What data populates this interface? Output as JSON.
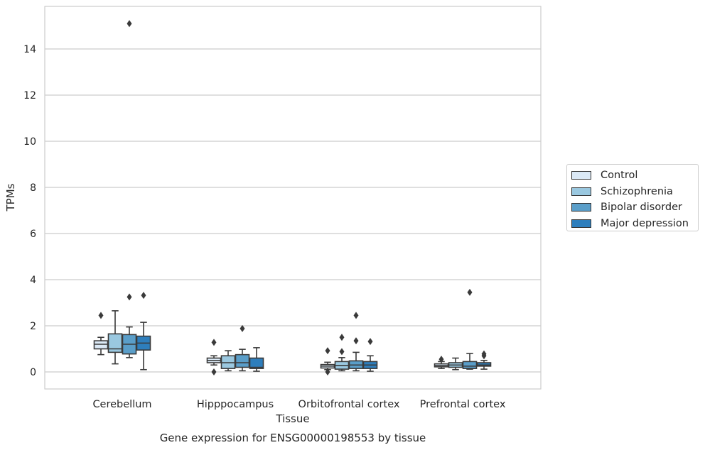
{
  "chart_data": {
    "type": "box",
    "title": "Gene expression for ENSG00000198553 by tissue",
    "xlabel": "Tissue",
    "ylabel": "TPMs",
    "ylim": [
      -0.7,
      15.5
    ],
    "yticks": [
      0,
      2,
      4,
      6,
      8,
      10,
      12,
      14
    ],
    "categories": [
      "Cerebellum",
      "Hipppocampus",
      "Orbitofrontal cortex",
      "Prefrontal cortex"
    ],
    "grid": "horizontal",
    "legend_placement": "right",
    "series": [
      {
        "name": "Control",
        "color": "#dbe9f6",
        "boxes": [
          {
            "whislo": 0.75,
            "q1": 1.0,
            "med": 1.2,
            "q3": 1.35,
            "whishi": 1.5,
            "fliers": [
              2.45
            ]
          },
          {
            "whislo": 0.3,
            "q1": 0.4,
            "med": 0.5,
            "q3": 0.6,
            "whishi": 0.7,
            "fliers": [
              1.28,
              0.0
            ]
          },
          {
            "whislo": 0.1,
            "q1": 0.17,
            "med": 0.25,
            "q3": 0.32,
            "whishi": 0.42,
            "fliers": [
              0.92,
              0.0
            ]
          },
          {
            "whislo": 0.15,
            "q1": 0.22,
            "med": 0.28,
            "q3": 0.35,
            "whishi": 0.45,
            "fliers": [
              0.55
            ]
          }
        ]
      },
      {
        "name": "Schizophrenia",
        "color": "#9ac8e0",
        "boxes": [
          {
            "whislo": 0.35,
            "q1": 0.85,
            "med": 1.0,
            "q3": 1.65,
            "whishi": 2.65,
            "fliers": []
          },
          {
            "whislo": 0.05,
            "q1": 0.15,
            "med": 0.4,
            "q3": 0.7,
            "whishi": 0.92,
            "fliers": []
          },
          {
            "whislo": 0.05,
            "q1": 0.12,
            "med": 0.28,
            "q3": 0.45,
            "whishi": 0.62,
            "fliers": [
              1.5,
              0.88
            ]
          },
          {
            "whislo": 0.1,
            "q1": 0.2,
            "med": 0.3,
            "q3": 0.4,
            "whishi": 0.6,
            "fliers": []
          }
        ]
      },
      {
        "name": "Bipolar disorder",
        "color": "#5a9ec9",
        "boxes": [
          {
            "whislo": 0.62,
            "q1": 0.78,
            "med": 1.2,
            "q3": 1.62,
            "whishi": 1.95,
            "fliers": [
              15.1,
              3.25
            ]
          },
          {
            "whislo": 0.05,
            "q1": 0.2,
            "med": 0.4,
            "q3": 0.75,
            "whishi": 0.98,
            "fliers": [
              1.88
            ]
          },
          {
            "whislo": 0.05,
            "q1": 0.15,
            "med": 0.3,
            "q3": 0.48,
            "whishi": 0.85,
            "fliers": [
              2.45,
              1.35
            ]
          },
          {
            "whislo": 0.12,
            "q1": 0.15,
            "med": 0.25,
            "q3": 0.45,
            "whishi": 0.8,
            "fliers": [
              3.45
            ]
          }
        ]
      },
      {
        "name": "Major depression",
        "color": "#2e7ebc",
        "boxes": [
          {
            "whislo": 0.1,
            "q1": 0.95,
            "med": 1.25,
            "q3": 1.55,
            "whishi": 2.15,
            "fliers": [
              3.32
            ]
          },
          {
            "whislo": 0.03,
            "q1": 0.15,
            "med": 0.2,
            "q3": 0.6,
            "whishi": 1.05,
            "fliers": []
          },
          {
            "whislo": 0.03,
            "q1": 0.15,
            "med": 0.3,
            "q3": 0.45,
            "whishi": 0.7,
            "fliers": [
              1.32
            ]
          },
          {
            "whislo": 0.12,
            "q1": 0.25,
            "med": 0.3,
            "q3": 0.4,
            "whishi": 0.5,
            "fliers": [
              0.78,
              0.7
            ]
          }
        ]
      }
    ]
  }
}
